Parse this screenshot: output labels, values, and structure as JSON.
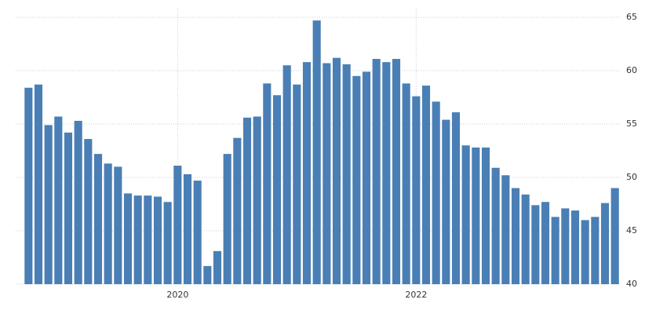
{
  "chart_data": {
    "type": "bar",
    "color": "#4a7fb5",
    "grid": true,
    "y_axis_side": "right",
    "categories": [
      null,
      null,
      null,
      null,
      null,
      null,
      null,
      null,
      null,
      null,
      null,
      null,
      null,
      null,
      null,
      "2020",
      null,
      null,
      null,
      null,
      null,
      null,
      null,
      null,
      null,
      null,
      null,
      null,
      null,
      null,
      null,
      null,
      null,
      null,
      null,
      null,
      null,
      null,
      null,
      "2022",
      null,
      null,
      null,
      null,
      null,
      null,
      null,
      null,
      null,
      null,
      null,
      null,
      null,
      null,
      null,
      null,
      null,
      null,
      null,
      null
    ],
    "values": [
      58.4,
      58.7,
      54.9,
      55.7,
      54.2,
      55.3,
      53.6,
      52.2,
      51.3,
      51.0,
      48.5,
      48.3,
      48.3,
      48.2,
      47.7,
      51.1,
      50.3,
      49.7,
      41.7,
      43.1,
      52.2,
      53.7,
      55.6,
      55.7,
      58.8,
      57.7,
      60.5,
      58.7,
      60.8,
      64.7,
      60.7,
      61.2,
      60.6,
      59.5,
      59.9,
      61.1,
      60.8,
      61.1,
      58.8,
      57.6,
      58.6,
      57.1,
      55.4,
      56.1,
      53.0,
      52.8,
      52.8,
      50.9,
      50.2,
      49.0,
      48.4,
      47.4,
      47.7,
      46.3,
      47.1,
      46.9,
      46.0,
      46.3,
      47.6,
      49.0
    ],
    "ylim": [
      40,
      65
    ],
    "yticks": [
      40,
      45,
      50,
      55,
      60,
      65
    ]
  }
}
